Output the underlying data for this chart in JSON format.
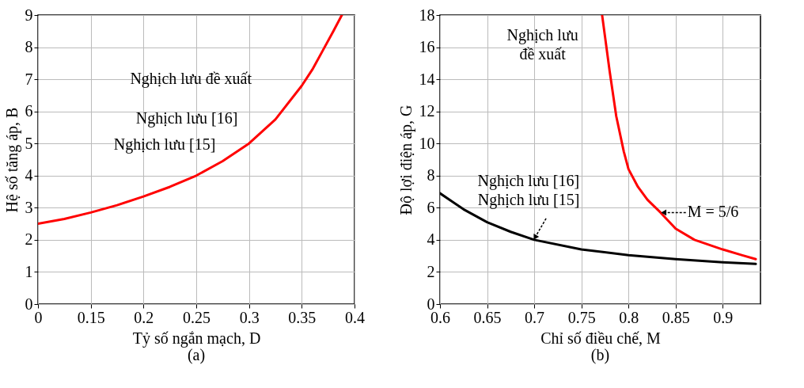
{
  "chart_data": [
    {
      "type": "line",
      "title": "(a)",
      "xlabel": "Tỷ số ngắn mạch, D",
      "ylabel": "Hệ số tăng áp, B",
      "xlim": [
        0.1,
        0.4
      ],
      "xticks": [
        {
          "value": 0.1,
          "label": "0"
        },
        0.15,
        0.2,
        0.25,
        0.3,
        0.35,
        0.4
      ],
      "ylim": [
        0,
        9
      ],
      "yticks": [
        0,
        1,
        2,
        3,
        4,
        5,
        6,
        7,
        8,
        9
      ],
      "grid": true,
      "series": [
        {
          "color": "#ff0000",
          "x": [
            0.1,
            0.125,
            0.15,
            0.175,
            0.2,
            0.225,
            0.25,
            0.275,
            0.3,
            0.325,
            0.35,
            0.36,
            0.37,
            0.38,
            0.388
          ],
          "values": [
            2.5,
            2.65,
            2.85,
            3.08,
            3.35,
            3.65,
            4.0,
            4.45,
            5.0,
            5.75,
            6.8,
            7.3,
            7.9,
            8.5,
            9.0
          ]
        }
      ],
      "annotations": [
        "Nghịch lưu đề xuất",
        "Nghịch lưu [16]",
        "Nghịch lưu [15]"
      ]
    },
    {
      "type": "line",
      "title": "(b)",
      "xlabel": "Chỉ số điều chế, M",
      "ylabel": "Độ lợi điện áp, G",
      "xlim": [
        0.6,
        0.94
      ],
      "xticks": [
        0.6,
        0.65,
        0.7,
        0.75,
        0.8,
        0.85,
        0.9
      ],
      "ylim": [
        0,
        18
      ],
      "yticks": [
        0,
        2,
        4,
        6,
        8,
        10,
        12,
        14,
        16,
        18
      ],
      "grid": true,
      "series": [
        {
          "color": "#ff0000",
          "x": [
            0.772,
            0.78,
            0.787,
            0.795,
            0.8,
            0.81,
            0.82,
            0.834,
            0.85,
            0.87,
            0.9,
            0.92,
            0.935
          ],
          "values": [
            18,
            14.5,
            11.7,
            9.5,
            8.4,
            7.3,
            6.5,
            5.7,
            4.7,
            4.0,
            3.4,
            3.05,
            2.8
          ]
        },
        {
          "color": "#000000",
          "x": [
            0.6,
            0.625,
            0.65,
            0.675,
            0.7,
            0.75,
            0.8,
            0.85,
            0.9,
            0.935
          ],
          "values": [
            6.9,
            5.9,
            5.1,
            4.5,
            4.0,
            3.4,
            3.05,
            2.8,
            2.6,
            2.5
          ]
        }
      ],
      "annotations": [
        "Nghịch lưu\nđề xuất",
        "Nghịch lưu [16]",
        {
          "text": "Nghịch lưu [15]",
          "x": 0.7,
          "y": 4.0
        },
        {
          "text": "M = 5/6",
          "x": 0.834,
          "y": 5.7
        }
      ]
    }
  ]
}
